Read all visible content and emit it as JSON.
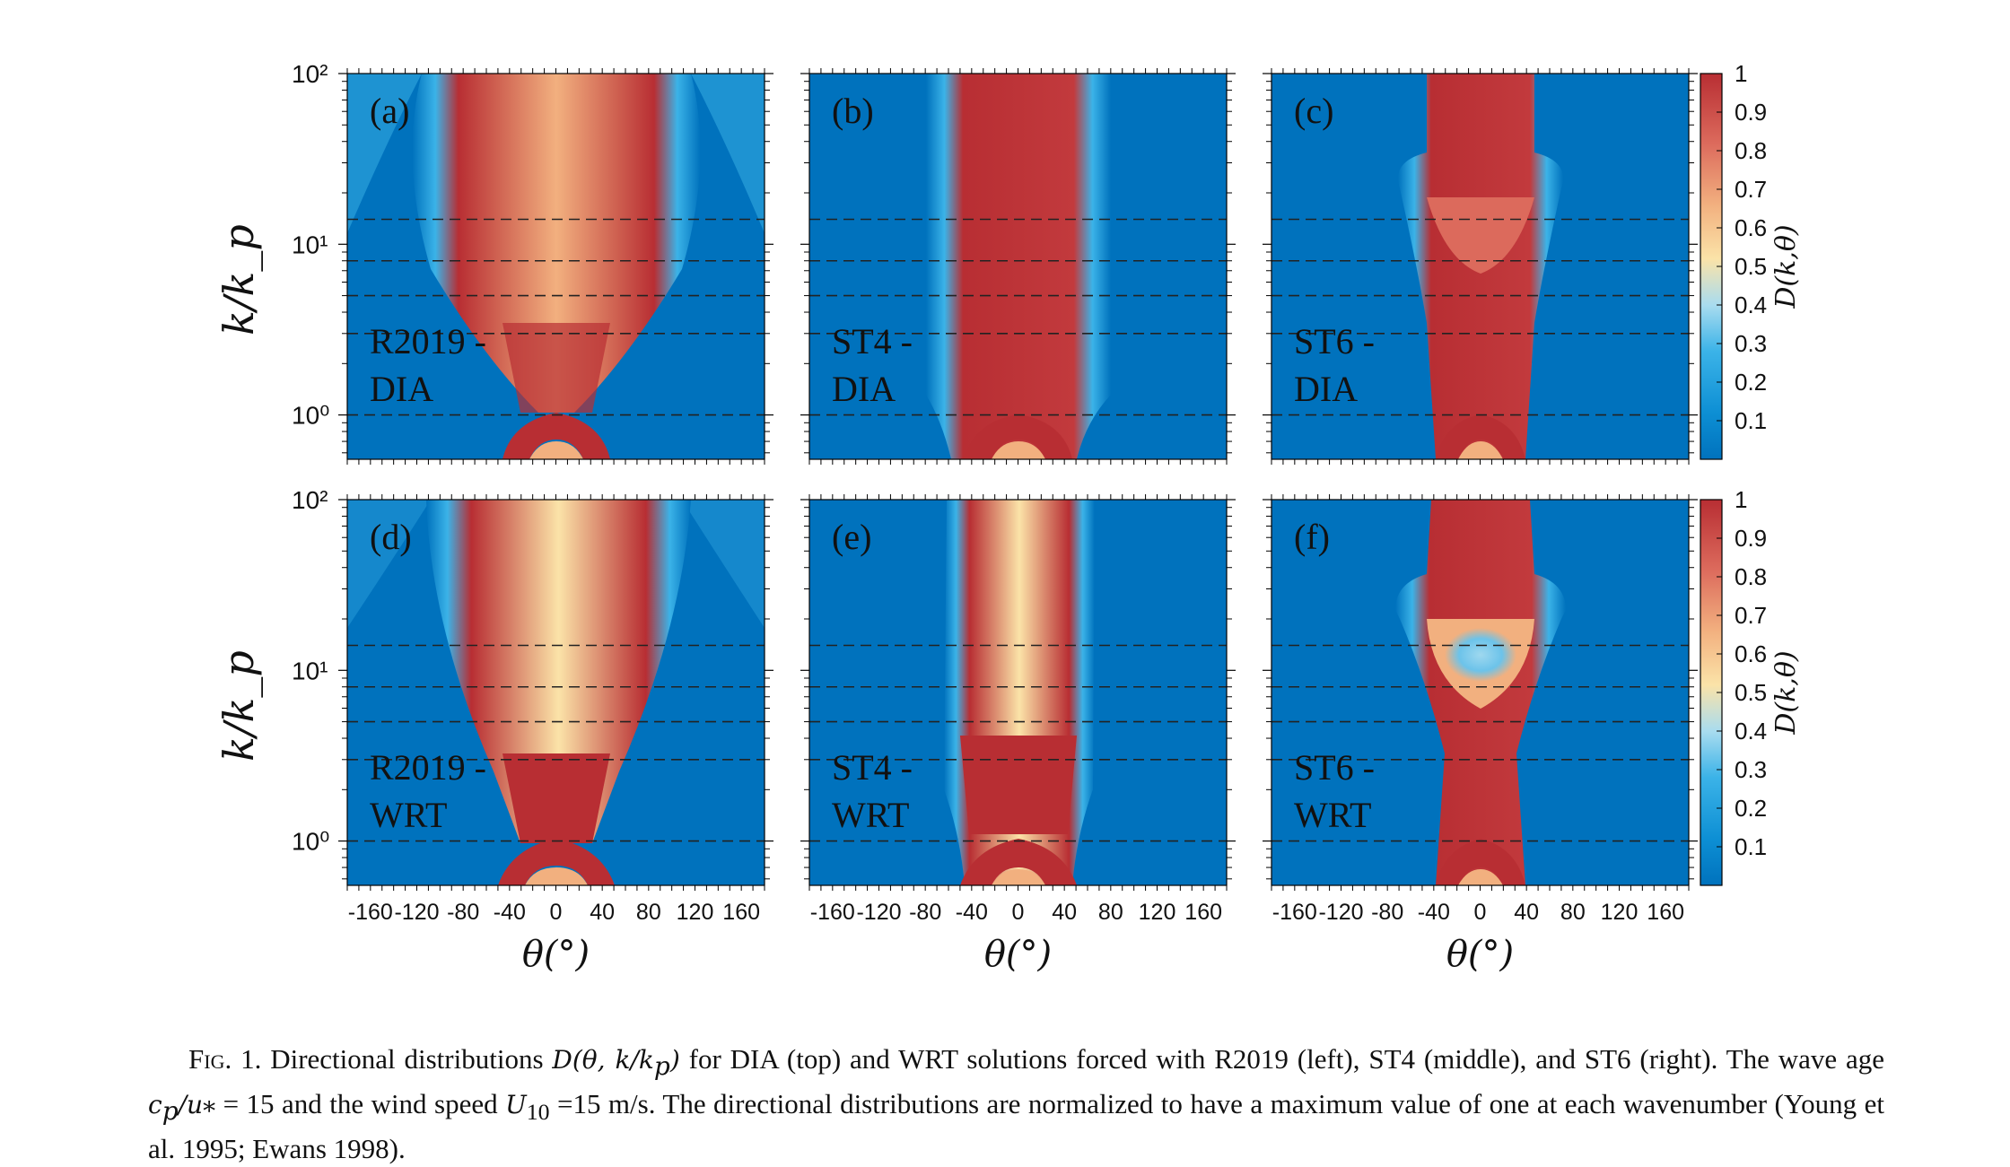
{
  "figure": {
    "y_axis_label": "k/k_p",
    "x_axis_label": "θ(°)",
    "colorbar_label": "D(k,θ)",
    "x_ticks": [
      "-160",
      "-120",
      "-80",
      "-40",
      "0",
      "40",
      "80",
      "120",
      "160"
    ],
    "y_ticks": [
      "10⁰",
      "10¹",
      "10²"
    ],
    "colorbar_ticks": [
      "0.1",
      "0.2",
      "0.3",
      "0.4",
      "0.5",
      "0.6",
      "0.7",
      "0.8",
      "0.9",
      "1"
    ],
    "dashed_levels_k_over_kp": [
      1,
      3,
      5,
      8,
      14
    ],
    "panels": [
      {
        "letter": "(a)",
        "line1": "R2019 -",
        "line2": "DIA"
      },
      {
        "letter": "(b)",
        "line1": "ST4 -",
        "line2": "DIA"
      },
      {
        "letter": "(c)",
        "line1": "ST6 -",
        "line2": "DIA"
      },
      {
        "letter": "(d)",
        "line1": "R2019 -",
        "line2": "WRT"
      },
      {
        "letter": "(e)",
        "line1": "ST4 -",
        "line2": "WRT"
      },
      {
        "letter": "(f)",
        "line1": "ST6 -",
        "line2": "WRT"
      }
    ],
    "colors": {
      "low": "#0072bd",
      "mid": "#fbe3a8",
      "high": "#b82e33"
    }
  },
  "caption": {
    "fig_label": "Fig. 1.",
    "part1": " Directional distributions ",
    "math1": "D(θ, k/k",
    "math1_sub": "p",
    "math1_end": ")",
    "part2": " for DIA (top) and WRT solutions forced with R2019 (left), ST4 (middle), and ST6 (right). The wave age ",
    "math2": "c",
    "math2_sub": "p",
    "math2_end": "/u",
    "math2_sub2": "*",
    "part3": " = 15 and the wind speed ",
    "math3": "U",
    "math3_sub": "10",
    "part4": " =15 m/s. The directional distributions are normalized to have a maximum value of one at each wavenumber (Young et al. 1995; Ewans 1998)."
  }
}
